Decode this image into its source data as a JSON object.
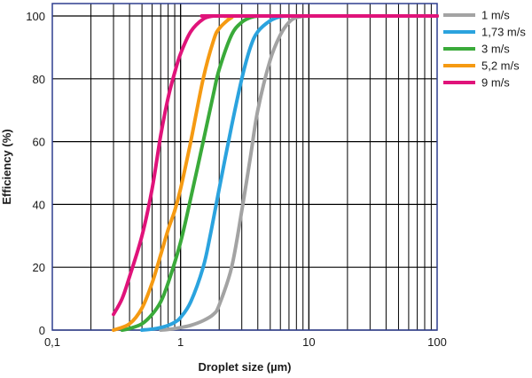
{
  "chart_data": {
    "type": "line",
    "xlabel": "Droplet size (µm)",
    "ylabel": "Efficiency (%)",
    "x_scale": "log",
    "xlim": [
      0.1,
      100
    ],
    "ylim": [
      0,
      100
    ],
    "x_tick_labels": [
      {
        "value": 0.1,
        "label": "0,1"
      },
      {
        "value": 1,
        "label": "1"
      },
      {
        "value": 10,
        "label": "10"
      },
      {
        "value": 100,
        "label": "100"
      }
    ],
    "y_tick_labels": [
      {
        "value": 0,
        "label": "0"
      },
      {
        "value": 20,
        "label": "20"
      },
      {
        "value": 40,
        "label": "40"
      },
      {
        "value": 60,
        "label": "60"
      },
      {
        "value": 80,
        "label": "80"
      },
      {
        "value": 100,
        "label": "100"
      }
    ],
    "grid": true,
    "legend_position": "top-right",
    "series": [
      {
        "name": "1 m/s",
        "color": "#a3a3a3",
        "x": [
          0.7,
          0.8,
          1,
          1.2,
          1.5,
          1.8,
          2,
          2.5,
          3,
          3.5,
          4,
          5,
          6,
          7,
          8,
          10,
          15,
          100
        ],
        "y": [
          0,
          0.2,
          0.8,
          1.5,
          3,
          5,
          8,
          20,
          38,
          55,
          70,
          86,
          94,
          98,
          99.5,
          100,
          100,
          100
        ]
      },
      {
        "name": "1,73 m/s",
        "color": "#2ba3de",
        "x": [
          0.5,
          0.6,
          0.7,
          0.8,
          0.9,
          1,
          1.2,
          1.5,
          1.7,
          2,
          2.5,
          3,
          3.5,
          4,
          5,
          6,
          7,
          10,
          100
        ],
        "y": [
          0,
          0.3,
          0.8,
          1.5,
          2.5,
          4,
          9,
          20,
          30,
          45,
          65,
          80,
          90,
          95,
          98.5,
          99.8,
          100,
          100,
          100
        ]
      },
      {
        "name": "3 m/s",
        "color": "#3aaa3a",
        "x": [
          0.35,
          0.4,
          0.5,
          0.6,
          0.7,
          0.8,
          1,
          1.2,
          1.5,
          1.8,
          2,
          2.5,
          3,
          3.5,
          4,
          5,
          100
        ],
        "y": [
          0,
          0.5,
          2,
          5,
          9,
          15,
          28,
          42,
          60,
          75,
          83,
          94,
          98,
          99.5,
          100,
          100,
          100
        ]
      },
      {
        "name": "5,2 m/s",
        "color": "#f59a12",
        "x": [
          0.3,
          0.4,
          0.5,
          0.6,
          0.7,
          0.8,
          0.9,
          1,
          1.2,
          1.5,
          1.8,
          2,
          2.5,
          3,
          100
        ],
        "y": [
          0,
          2,
          7,
          15,
          24,
          32,
          38,
          45,
          60,
          80,
          92,
          96,
          99.5,
          100,
          100
        ]
      },
      {
        "name": "9 m/s",
        "color": "#e0137a",
        "x": [
          0.3,
          0.35,
          0.4,
          0.5,
          0.6,
          0.7,
          0.8,
          0.9,
          1,
          1.2,
          1.5,
          1.8,
          2,
          100
        ],
        "y": [
          5,
          10,
          17,
          30,
          45,
          62,
          74,
          82,
          88,
          95,
          99,
          100,
          100,
          100
        ]
      }
    ]
  }
}
